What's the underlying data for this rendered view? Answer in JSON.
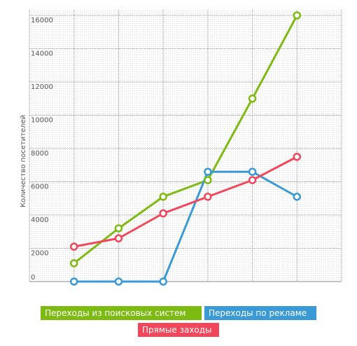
{
  "chart_data": {
    "type": "line",
    "y_label": "Количество посетителей",
    "categories": [
      null,
      null,
      null,
      null,
      null,
      null
    ],
    "series": [
      {
        "name": "Переходы из поисковых систем",
        "color": "#7dbb12",
        "values": [
          1100,
          3200,
          5100,
          6100,
          11000,
          16000
        ]
      },
      {
        "name": "Переходы по рекламе",
        "color": "#3a9ad6",
        "values": [
          0,
          0,
          0,
          6600,
          6600,
          5100
        ]
      },
      {
        "name": "Прямые заходы",
        "color": "#f2475a",
        "values": [
          2100,
          2600,
          4100,
          5100,
          6100,
          7500
        ]
      }
    ],
    "ylim": [
      0,
      16000
    ],
    "yticks": [
      0,
      2000,
      4000,
      6000,
      8000,
      10000,
      12000,
      14000,
      16000
    ],
    "grid": true
  }
}
